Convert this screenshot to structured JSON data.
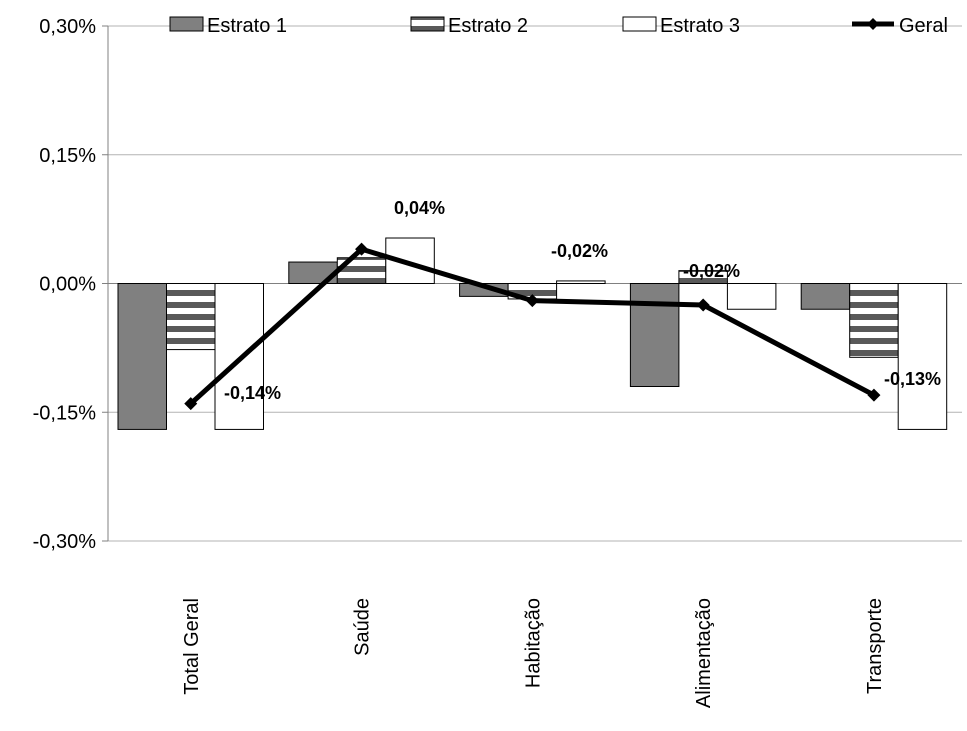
{
  "chart_data": {
    "type": "bar",
    "categories": [
      "Total Geral",
      "Saúde",
      "Habitação",
      "Alimentação",
      "Transporte"
    ],
    "series": [
      {
        "name": "Estrato 1",
        "kind": "bar",
        "color": "#808080",
        "pattern": "solid",
        "values": [
          -0.17,
          0.025,
          -0.015,
          -0.12,
          -0.03
        ]
      },
      {
        "name": "Estrato 2",
        "kind": "bar",
        "color": "#595959",
        "pattern": "horizontal-stripes",
        "values": [
          -0.077,
          0.03,
          -0.018,
          0.015,
          -0.086
        ]
      },
      {
        "name": "Estrato 3",
        "kind": "bar",
        "color": "#ffffff",
        "pattern": "solid",
        "values": [
          -0.17,
          0.053,
          0.003,
          -0.03,
          -0.17
        ]
      },
      {
        "name": "Geral",
        "kind": "line",
        "color": "#000000",
        "marker": "diamond",
        "values": [
          -0.14,
          0.04,
          -0.02,
          -0.025,
          -0.13
        ]
      }
    ],
    "data_labels": [
      "-0,14%",
      "0,04%",
      "-0,02%",
      "-0,02%",
      "-0,13%"
    ],
    "y_ticks": [
      0.3,
      0.15,
      0,
      -0.15,
      -0.3
    ],
    "y_tick_labels": [
      "0,30%",
      "0,15%",
      "0,00%",
      "-0,15%",
      "-0,30%"
    ],
    "ylim": [
      -0.3,
      0.3
    ],
    "grid": true,
    "legend_position": "top"
  }
}
